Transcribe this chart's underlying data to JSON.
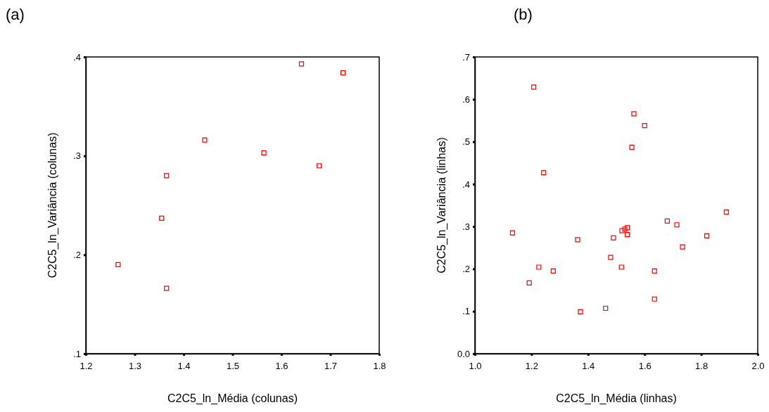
{
  "chart_data": [
    {
      "type": "scatter",
      "title": "(a)",
      "xlabel": "C2C5_ln_Média (colunas)",
      "ylabel": "C2C5_ln_Variância (colunas)",
      "marker": "square",
      "grid": false,
      "xlim": [
        1.2,
        1.8
      ],
      "xticks": [
        1.2,
        1.3,
        1.4,
        1.5,
        1.6,
        1.7,
        1.8
      ],
      "ylim": [
        0.1,
        0.4
      ],
      "yticks": [
        {
          "value": 0.1,
          "label": ".1"
        },
        {
          "value": 0.2,
          "label": ".2"
        },
        {
          "value": 0.3,
          "label": ".3"
        },
        {
          "value": 0.4,
          "label": ".4"
        }
      ],
      "series": [
        {
          "color": "#ff0000",
          "x": [
            1.641,
            1.726,
            1.443,
            1.564,
            1.677,
            1.365,
            1.355,
            1.266,
            1.365
          ],
          "values": [
            0.393,
            0.384,
            0.316,
            0.303,
            0.29,
            0.28,
            0.237,
            0.19,
            0.166
          ]
        }
      ]
    },
    {
      "type": "scatter",
      "title": "(b)",
      "xlabel": "C2C5_ln_Média (linhas)",
      "ylabel": "C2C5_ln_Variância (linhas)",
      "marker": "square",
      "grid": false,
      "xlim": [
        1.0,
        2.0
      ],
      "xticks": [
        {
          "value": 1.0,
          "label": "1.0"
        },
        1.2,
        1.4,
        1.6,
        1.8,
        {
          "value": 2.0,
          "label": "2.0"
        }
      ],
      "ylim": [
        0,
        0.7
      ],
      "yticks": [
        {
          "value": 0,
          "label": "0.0"
        },
        {
          "value": 0.1,
          "label": ".1"
        },
        {
          "value": 0.2,
          "label": ".2"
        },
        {
          "value": 0.3,
          "label": ".3"
        },
        {
          "value": 0.4,
          "label": ".4"
        },
        {
          "value": 0.5,
          "label": ".5"
        },
        {
          "value": 0.6,
          "label": ".6"
        },
        {
          "value": 0.7,
          "label": ".7"
        }
      ],
      "series": [
        {
          "color": "#ff0000",
          "x": [
            1.208,
            1.562,
            1.6,
            1.555,
            1.243,
            1.889,
            1.68,
            1.714,
            1.133,
            1.539,
            1.53,
            1.52,
            1.539,
            1.82,
            1.363,
            1.49,
            1.734,
            1.48,
            1.226,
            1.518,
            1.277,
            1.635,
            1.192,
            1.635,
            1.462,
            1.373
          ],
          "values": [
            0.629,
            0.566,
            0.538,
            0.487,
            0.427,
            0.334,
            0.313,
            0.304,
            0.285,
            0.297,
            0.294,
            0.29,
            0.281,
            0.278,
            0.269,
            0.273,
            0.252,
            0.227,
            0.204,
            0.204,
            0.195,
            0.195,
            0.167,
            0.129,
            0.107,
            0.099
          ]
        }
      ]
    }
  ]
}
